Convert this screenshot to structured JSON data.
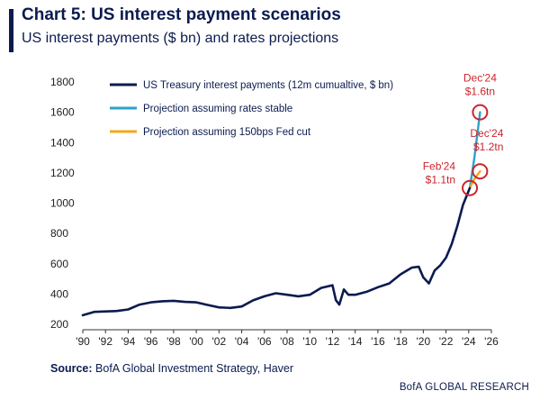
{
  "header": {
    "title": "Chart 5: US interest payment scenarios",
    "subtitle": "US interest payments ($ bn) and rates projections"
  },
  "footer": {
    "source_label": "Source:",
    "source_text": "BofA Global Investment Strategy, Haver",
    "brand": "BofA GLOBAL RESEARCH"
  },
  "colors": {
    "actual": "#0b1b4f",
    "stable": "#2aa3c8",
    "cut": "#f2a81d",
    "annotation": "#c8262e",
    "axis": "#333333"
  },
  "chart_data": {
    "type": "line",
    "title": "Chart 5: US interest payment scenarios",
    "subtitle": "US interest payments ($ bn) and rates projections",
    "xlim": [
      1990,
      2026
    ],
    "ylim": [
      200,
      1800
    ],
    "y_ticks": [
      200,
      400,
      600,
      800,
      1000,
      1200,
      1400,
      1600,
      1800
    ],
    "x_ticks": [
      1990,
      1992,
      1994,
      1996,
      1998,
      2000,
      2002,
      2004,
      2006,
      2008,
      2010,
      2012,
      2014,
      2016,
      2018,
      2020,
      2022,
      2024,
      2026
    ],
    "x_tick_labels": [
      "'90",
      "'92",
      "'94",
      "'96",
      "'98",
      "'00",
      "'02",
      "'04",
      "'06",
      "'08",
      "'10",
      "'12",
      "'14",
      "'16",
      "'18",
      "'20",
      "'22",
      "'24",
      "'26"
    ],
    "grid": false,
    "legend_position": "top-left",
    "series": [
      {
        "name": "US Treasury interest payments (12m cumualtive, $ bn)",
        "color": "#0b1b4f",
        "x": [
          1990,
          1991,
          1992,
          1993,
          1994,
          1995,
          1996,
          1997,
          1998,
          1999,
          2000,
          2001,
          2002,
          2003,
          2004,
          2005,
          2006,
          2007,
          2008,
          2009,
          2010,
          2011,
          2012,
          2012.3,
          2012.6,
          2013,
          2013.4,
          2014,
          2015,
          2016,
          2017,
          2018,
          2019,
          2019.6,
          2020,
          2020.5,
          2021,
          2021.5,
          2022,
          2022.5,
          2023,
          2023.5,
          2024.1
        ],
        "y": [
          260,
          282,
          285,
          288,
          298,
          330,
          345,
          352,
          355,
          348,
          345,
          328,
          312,
          308,
          318,
          358,
          385,
          405,
          395,
          385,
          395,
          440,
          458,
          360,
          330,
          430,
          395,
          395,
          415,
          445,
          470,
          530,
          575,
          580,
          510,
          470,
          555,
          590,
          640,
          730,
          850,
          990,
          1100
        ]
      },
      {
        "name": "Projection assuming rates stable",
        "color": "#2aa3c8",
        "x": [
          2024.1,
          2024.5,
          2025.0
        ],
        "y": [
          1100,
          1300,
          1600
        ]
      },
      {
        "name": "Projection assuming 150bps Fed cut",
        "color": "#f2a81d",
        "x": [
          2024.1,
          2024.5,
          2025.0
        ],
        "y": [
          1100,
          1160,
          1210
        ]
      }
    ],
    "annotations": [
      {
        "label_line1": "Dec'24",
        "label_line2": "$1.6tn",
        "x": 2025.0,
        "y": 1600,
        "text_anchor": "middle",
        "text_place": "above"
      },
      {
        "label_line1": "Dec'24",
        "label_line2": "$1.2tn",
        "x": 2025.0,
        "y": 1210,
        "text_anchor": "right",
        "text_place": "above-right"
      },
      {
        "label_line1": "Feb'24",
        "label_line2": "$1.1tn",
        "x": 2024.1,
        "y": 1100,
        "text_anchor": "left",
        "text_place": "left"
      }
    ]
  }
}
